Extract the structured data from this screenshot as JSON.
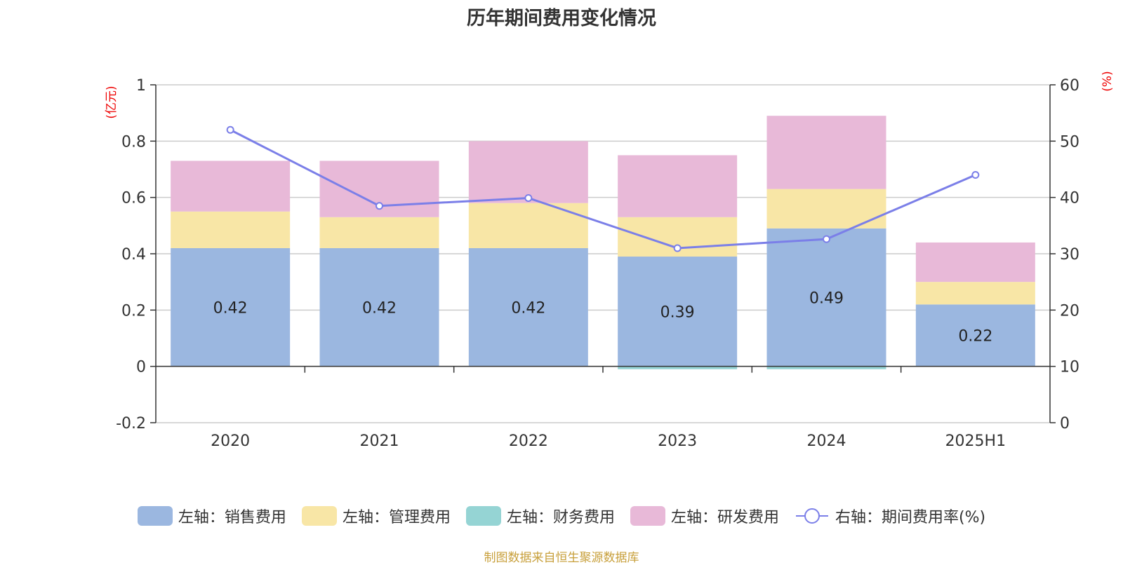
{
  "title": "历年期间费用变化情况",
  "source_note": "制图数据来自恒生聚源数据库",
  "chart_data": {
    "type": "bar",
    "stacked": true,
    "categories": [
      "2020",
      "2021",
      "2022",
      "2023",
      "2024",
      "2025H1"
    ],
    "left_axis": {
      "unit": "(亿元)",
      "ylim": [
        -0.2,
        1
      ],
      "ticks": [
        -0.2,
        0,
        0.2,
        0.4,
        0.6,
        0.8,
        1
      ],
      "tick_labels": [
        "-0.2",
        "0",
        "0.2",
        "0.4",
        "0.6",
        "0.8",
        "1"
      ]
    },
    "right_axis": {
      "unit": "(%)",
      "ylim": [
        0,
        60
      ],
      "ticks": [
        0,
        10,
        20,
        30,
        40,
        50,
        60
      ],
      "tick_labels": [
        "0",
        "10",
        "20",
        "30",
        "40",
        "50",
        "60"
      ]
    },
    "series": [
      {
        "name": "左轴：销售费用",
        "axis": "left",
        "color": "#9bb7e0",
        "values": [
          0.42,
          0.42,
          0.42,
          0.39,
          0.49,
          0.22
        ],
        "data_labels": [
          "0.42",
          "0.42",
          "0.42",
          "0.39",
          "0.49",
          "0.22"
        ]
      },
      {
        "name": "左轴：管理费用",
        "axis": "left",
        "color": "#f8e6a6",
        "values": [
          0.13,
          0.11,
          0.16,
          0.14,
          0.14,
          0.08
        ]
      },
      {
        "name": "左轴：财务费用",
        "axis": "left",
        "color": "#95d4d4",
        "values": [
          0.0,
          0.0,
          0.0,
          -0.01,
          -0.01,
          0.0
        ]
      },
      {
        "name": "左轴：研发费用",
        "axis": "left",
        "color": "#e8b9d8",
        "values": [
          0.18,
          0.2,
          0.22,
          0.22,
          0.26,
          0.14
        ]
      },
      {
        "name": "右轴：期间费用率(%)",
        "axis": "right",
        "type": "line",
        "color": "#7b7fe8",
        "values": [
          52.0,
          38.5,
          39.9,
          31.0,
          32.6,
          44.0
        ]
      }
    ],
    "grid": true,
    "legend_position": "bottom"
  }
}
